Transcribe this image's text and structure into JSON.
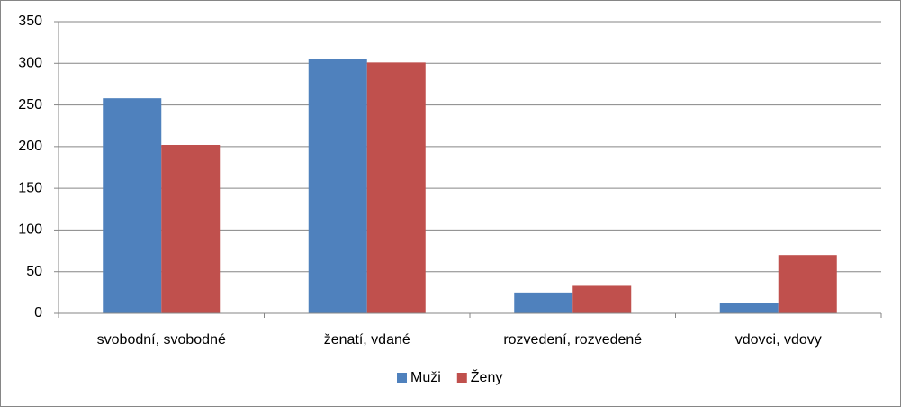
{
  "chart_data": {
    "type": "bar",
    "categories": [
      "svobodní, svobodné",
      "ženatí, vdané",
      "rozvedení, rozvedené",
      "vdovci, vdovy"
    ],
    "series": [
      {
        "name": "Muži",
        "color": "#4f81bd",
        "values": [
          258,
          305,
          25,
          12
        ]
      },
      {
        "name": "Ženy",
        "color": "#c0504d",
        "values": [
          202,
          301,
          33,
          70
        ]
      }
    ],
    "ylim": [
      0,
      350
    ],
    "yticks": [
      0,
      50,
      100,
      150,
      200,
      250,
      300,
      350
    ],
    "grid": true,
    "legend": "bottom"
  }
}
